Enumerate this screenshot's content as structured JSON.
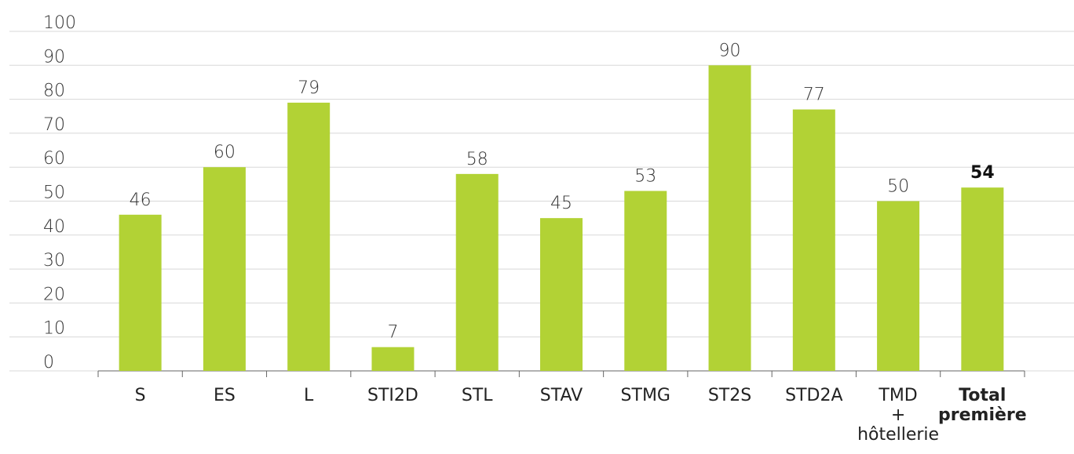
{
  "chart_data": {
    "type": "bar",
    "categories": [
      "S",
      "ES",
      "L",
      "STI2D",
      "STL",
      "STAV",
      "STMG",
      "ST2S",
      "STD2A",
      "TMD\n+\nhôtellerie",
      "Total\npremière"
    ],
    "values": [
      46,
      60,
      79,
      7,
      58,
      45,
      53,
      90,
      77,
      50,
      54
    ],
    "color": "#b2d235",
    "ylim": [
      0,
      100
    ],
    "yticks": [
      0,
      10,
      20,
      30,
      40,
      50,
      60,
      70,
      80,
      90,
      100
    ],
    "grid": true
  }
}
